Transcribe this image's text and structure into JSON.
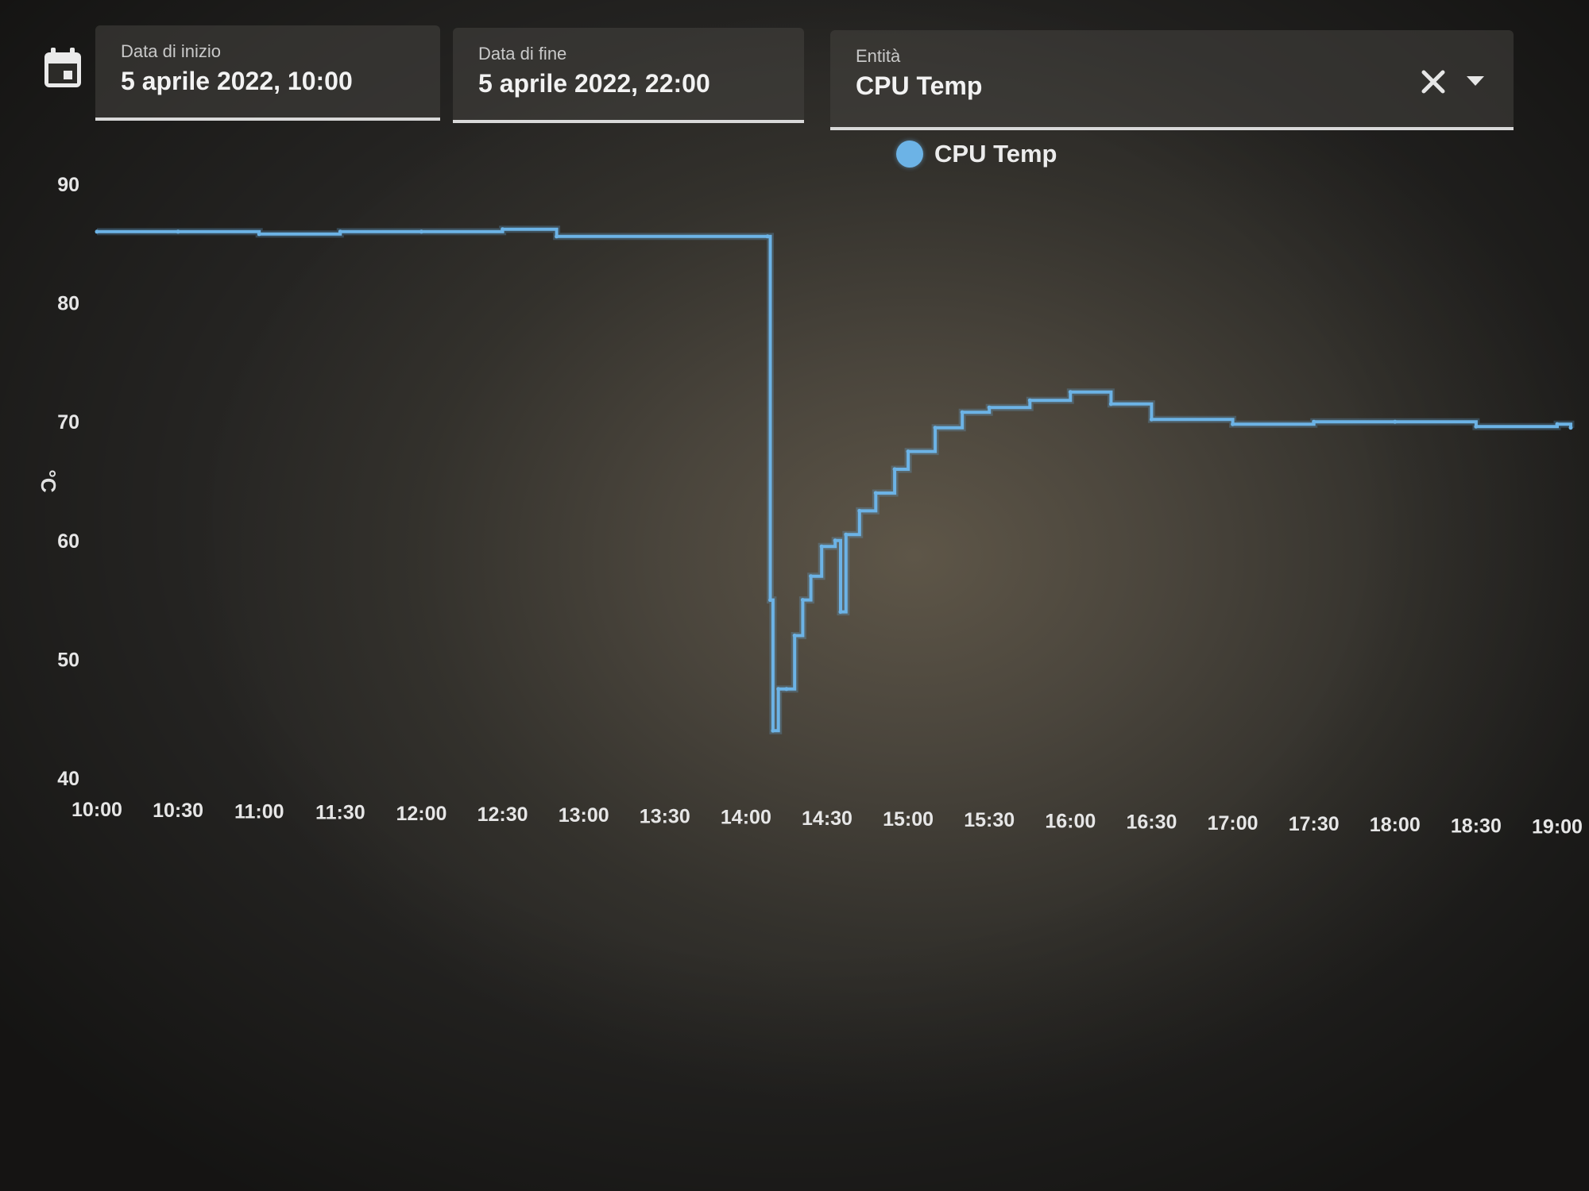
{
  "date_picker": {
    "start_label": "Data di inizio",
    "start_value": "5 aprile 2022, 10:00",
    "end_label": "Data di fine",
    "end_value": "5 aprile 2022, 22:00"
  },
  "entity_picker": {
    "label": "Entità",
    "value": "CPU Temp"
  },
  "icons": {
    "calendar": "calendar-icon",
    "clear": "close-icon",
    "dropdown": "caret-down-icon"
  },
  "colors": {
    "series": "#6cb3e6",
    "background": "#3a3731",
    "field_underline": "#d9d9d9"
  },
  "chart_data": {
    "type": "line",
    "title": "",
    "xlabel": "",
    "ylabel": "°C",
    "ylim": [
      40,
      90
    ],
    "yticks": [
      90,
      80,
      70,
      60,
      50,
      40
    ],
    "xticks": [
      "10:00",
      "10:30",
      "11:00",
      "11:30",
      "12:00",
      "12:30",
      "13:00",
      "13:30",
      "14:00",
      "14:30",
      "15:00",
      "15:30",
      "16:00",
      "16:30",
      "17:00",
      "17:30",
      "18:00",
      "18:30",
      "19:00"
    ],
    "legend": "top-center",
    "grid": false,
    "series": [
      {
        "name": "CPU Temp",
        "line_style": "step",
        "points": [
          [
            "10:00",
            86
          ],
          [
            "10:30",
            86
          ],
          [
            "11:00",
            85.8
          ],
          [
            "11:30",
            86
          ],
          [
            "12:00",
            86
          ],
          [
            "12:30",
            86.2
          ],
          [
            "12:50",
            85.6
          ],
          [
            "14:08",
            85.6
          ],
          [
            "14:09",
            55
          ],
          [
            "14:10",
            44
          ],
          [
            "14:12",
            47.5
          ],
          [
            "14:15",
            47.5
          ],
          [
            "14:18",
            52
          ],
          [
            "14:21",
            55
          ],
          [
            "14:24",
            57
          ],
          [
            "14:28",
            59.5
          ],
          [
            "14:33",
            60
          ],
          [
            "14:35",
            54
          ],
          [
            "14:37",
            60.5
          ],
          [
            "14:42",
            62.5
          ],
          [
            "14:48",
            64
          ],
          [
            "14:55",
            66
          ],
          [
            "15:00",
            67.5
          ],
          [
            "15:10",
            69.5
          ],
          [
            "15:20",
            70.8
          ],
          [
            "15:30",
            71.2
          ],
          [
            "15:45",
            71.8
          ],
          [
            "16:00",
            72.5
          ],
          [
            "16:15",
            71.5
          ],
          [
            "16:30",
            70.2
          ],
          [
            "17:00",
            69.8
          ],
          [
            "17:30",
            70
          ],
          [
            "18:00",
            70
          ],
          [
            "18:30",
            69.6
          ],
          [
            "19:00",
            69.8
          ],
          [
            "19:05",
            69.5
          ]
        ]
      }
    ]
  }
}
